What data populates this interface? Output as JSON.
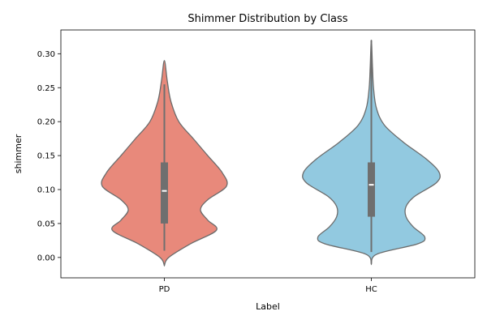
{
  "chart_data": {
    "type": "violin",
    "title": "Shimmer Distribution by Class",
    "xlabel": "Label",
    "ylabel": "shimmer",
    "ylim": [
      -0.03,
      0.335
    ],
    "yticks": [
      0.0,
      0.05,
      0.1,
      0.15,
      0.2,
      0.25,
      0.3
    ],
    "ytick_labels": [
      "0.00",
      "0.05",
      "0.10",
      "0.15",
      "0.20",
      "0.25",
      "0.30"
    ],
    "categories": [
      "PD",
      "HC"
    ],
    "grid": false,
    "series": [
      {
        "category": "PD",
        "color": "#e8897b",
        "min": 0.01,
        "q1": 0.05,
        "median": 0.098,
        "q3": 0.14,
        "max": 0.255,
        "density_profile": [
          [
            -0.012,
            0.0
          ],
          [
            0.0,
            0.03
          ],
          [
            0.02,
            0.18
          ],
          [
            0.04,
            0.36
          ],
          [
            0.055,
            0.3
          ],
          [
            0.07,
            0.25
          ],
          [
            0.085,
            0.3
          ],
          [
            0.105,
            0.43
          ],
          [
            0.125,
            0.4
          ],
          [
            0.15,
            0.3
          ],
          [
            0.175,
            0.2
          ],
          [
            0.2,
            0.1
          ],
          [
            0.23,
            0.045
          ],
          [
            0.26,
            0.02
          ],
          [
            0.29,
            0.0
          ]
        ]
      },
      {
        "category": "HC",
        "color": "#92c9e0",
        "min": 0.008,
        "q1": 0.06,
        "median": 0.107,
        "q3": 0.14,
        "max": 0.32,
        "density_profile": [
          [
            -0.01,
            0.0
          ],
          [
            0.005,
            0.04
          ],
          [
            0.02,
            0.32
          ],
          [
            0.03,
            0.37
          ],
          [
            0.045,
            0.29
          ],
          [
            0.06,
            0.24
          ],
          [
            0.075,
            0.24
          ],
          [
            0.09,
            0.3
          ],
          [
            0.11,
            0.45
          ],
          [
            0.125,
            0.47
          ],
          [
            0.145,
            0.38
          ],
          [
            0.17,
            0.22
          ],
          [
            0.195,
            0.09
          ],
          [
            0.22,
            0.035
          ],
          [
            0.25,
            0.015
          ],
          [
            0.28,
            0.008
          ],
          [
            0.32,
            0.0
          ]
        ]
      }
    ]
  }
}
